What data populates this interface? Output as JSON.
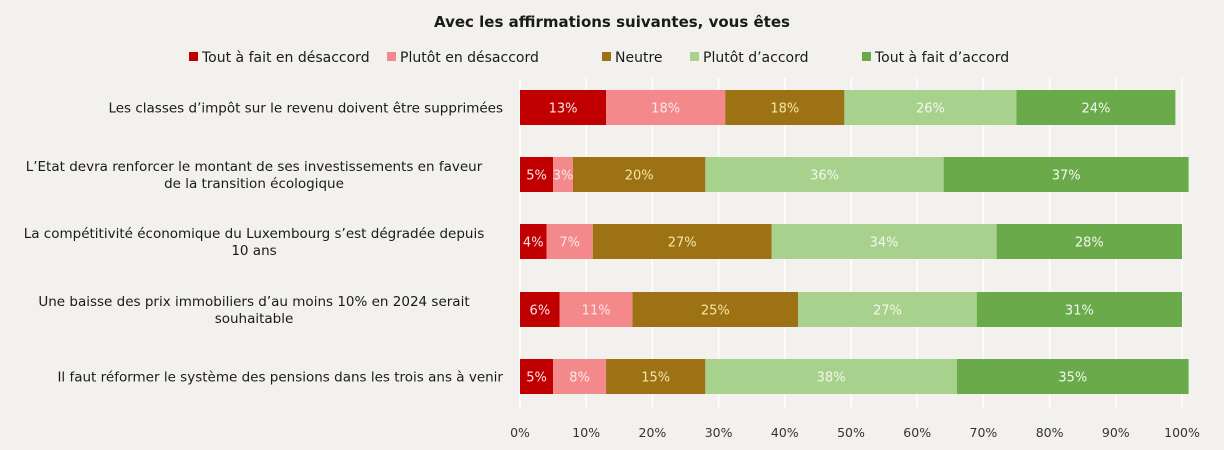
{
  "chart_data": {
    "type": "bar",
    "orientation": "horizontal",
    "stacked": true,
    "title": "Avec les affirmations suivantes, vous êtes",
    "xlabel": "",
    "ylabel": "",
    "xlim": [
      0,
      100
    ],
    "x_ticks": [
      "0%",
      "10%",
      "20%",
      "30%",
      "40%",
      "50%",
      "60%",
      "70%",
      "80%",
      "90%",
      "100%"
    ],
    "grid": true,
    "legend_position": "top",
    "categories": [
      [
        "Les classes d’impôt sur le revenu doivent être supprimées"
      ],
      [
        "L’Etat devra renforcer  le montant de ses investissements en faveur",
        "de la transition écologique"
      ],
      [
        "La compétitivité économique du Luxembourg s’est dégradée depuis",
        "10 ans"
      ],
      [
        "Une baisse des prix immobiliers d’au moins 10% en 2024 serait",
        "souhaitable"
      ],
      [
        "Il faut réformer le système des pensions dans les trois ans à venir"
      ]
    ],
    "series": [
      {
        "name": "Tout à fait en désaccord",
        "color": "#c00000",
        "label_color": "#fbe3e3",
        "values": [
          13,
          5,
          4,
          6,
          5
        ]
      },
      {
        "name": "Plutôt en désaccord",
        "color": "#f4898b",
        "label_color": "#fde7e7",
        "values": [
          18,
          3,
          7,
          11,
          8
        ]
      },
      {
        "name": "Neutre",
        "color": "#9c7214",
        "label_color": "#f6e6a8",
        "values": [
          18,
          20,
          27,
          25,
          15
        ]
      },
      {
        "name": "Plutôt d’accord",
        "color": "#a9d18e",
        "label_color": "#f1f8ea",
        "values": [
          26,
          36,
          34,
          27,
          38
        ]
      },
      {
        "name": "Tout à fait d’accord",
        "color": "#6aaa4b",
        "label_color": "#f3f9ee",
        "values": [
          24,
          37,
          28,
          31,
          35
        ]
      }
    ],
    "value_suffix": "%"
  }
}
